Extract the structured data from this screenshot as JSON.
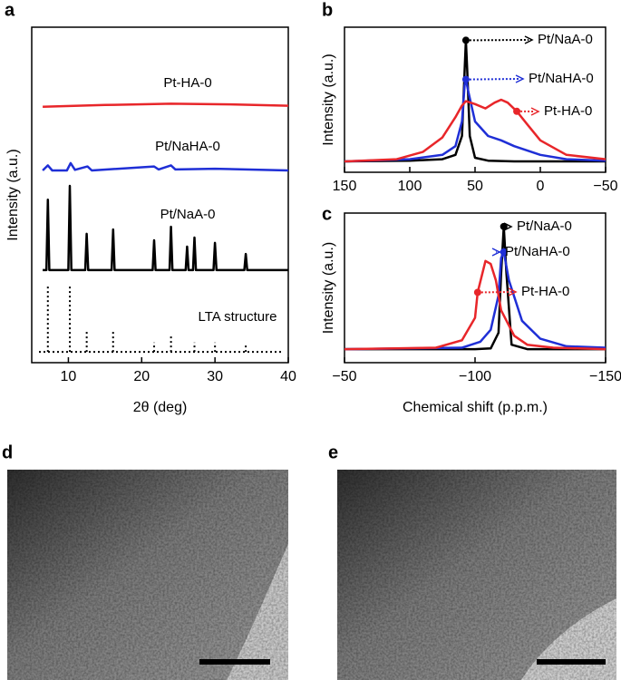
{
  "chart_data": [
    {
      "type": "line",
      "panel_label": "a",
      "x_label": "2θ (deg)",
      "y_label": "Intensity (a.u.)",
      "xlim": [
        5,
        40
      ],
      "xticks": [
        10,
        20,
        30,
        40
      ],
      "ylim": [
        0,
        100
      ],
      "grid": false,
      "series": [
        {
          "name": "Pt-HA-0",
          "color": "#e8262a",
          "style": "line",
          "x": [
            6.5,
            15,
            24,
            32,
            40
          ],
          "values": [
            76.3,
            76.8,
            77.2,
            77.0,
            76.6
          ]
        },
        {
          "name": "Pt/NaHA-0",
          "color": "#1f2fd6",
          "style": "line",
          "x": [
            6.5,
            7.2,
            7.8,
            9.8,
            10.3,
            10.9,
            12.6,
            13.2,
            21.7,
            22.3,
            24,
            24.6,
            30,
            40
          ],
          "values": [
            57.3,
            58.8,
            57.3,
            57.3,
            59.5,
            57.5,
            58.5,
            57.3,
            58.5,
            57.6,
            58.8,
            57.6,
            57.8,
            57.3
          ]
        },
        {
          "name": "Pt/NaA-0",
          "color": "#000000",
          "style": "line",
          "x": [
            6.5,
            7.0,
            7.2,
            7.4,
            10.0,
            10.2,
            10.4,
            12.3,
            12.5,
            12.7,
            15.9,
            16.1,
            16.3,
            21.5,
            21.7,
            21.9,
            23.8,
            24.0,
            24.2,
            26.0,
            26.2,
            26.4,
            27.0,
            27.2,
            27.4,
            29.8,
            30.0,
            30.2,
            34.0,
            34.2,
            34.4,
            40
          ],
          "values": [
            27.6,
            27.6,
            48.6,
            27.6,
            27.6,
            52.7,
            27.6,
            27.6,
            38.4,
            27.6,
            27.6,
            39.7,
            27.6,
            27.6,
            36.5,
            27.6,
            27.6,
            40.5,
            27.6,
            27.6,
            34.6,
            27.6,
            27.6,
            37.3,
            27.6,
            27.6,
            35.7,
            27.6,
            27.6,
            32.4,
            27.6,
            27.6
          ]
        },
        {
          "name": "LTA structure",
          "color": "#000000",
          "label_color": "#8c8c8c",
          "style": "stem",
          "baseline": 3.2,
          "x": [
            7.2,
            10.2,
            12.5,
            16.1,
            21.7,
            24.0,
            27.2,
            30.0,
            34.2
          ],
          "values": [
            23,
            23,
            9.5,
            9.5,
            6,
            8,
            6,
            6,
            5.4
          ]
        }
      ]
    },
    {
      "type": "line",
      "panel_label": "b",
      "y_label": "Intensity (a.u.)",
      "xlim": [
        150,
        -50
      ],
      "xticks": [
        150,
        100,
        50,
        0,
        {
          "value": -50,
          "label": "−50"
        }
      ],
      "ylim": [
        0,
        100
      ],
      "grid": false,
      "series": [
        {
          "name": "Pt/NaA-0",
          "color": "#000000",
          "style": "line",
          "marker_x": 57,
          "x": [
            150,
            100,
            75,
            65,
            60,
            58,
            57,
            56,
            54,
            50,
            40,
            20,
            0,
            -50
          ],
          "values": [
            7.5,
            8,
            9,
            12,
            25,
            70,
            91,
            70,
            25,
            10,
            8,
            7.5,
            7.5,
            7.5
          ]
        },
        {
          "name": "Pt/NaHA-0",
          "color": "#1f2fd6",
          "style": "line",
          "marker_x": 57,
          "x": [
            150,
            100,
            75,
            65,
            60,
            58,
            57,
            55,
            50,
            40,
            30,
            20,
            0,
            -20,
            -50
          ],
          "values": [
            7.5,
            9,
            12,
            18,
            35,
            60,
            64,
            55,
            35,
            25,
            22,
            18,
            12,
            9,
            8
          ]
        },
        {
          "name": "Pt-HA-0",
          "color": "#e8262a",
          "style": "line",
          "marker_x": 18,
          "x": [
            150,
            110,
            90,
            75,
            65,
            60,
            57,
            50,
            42,
            35,
            30,
            25,
            18,
            10,
            0,
            -20,
            -50
          ],
          "values": [
            7.5,
            9,
            14,
            24,
            38,
            46,
            49,
            47,
            44,
            48,
            50,
            48,
            42,
            33,
            22,
            12,
            9
          ]
        }
      ]
    },
    {
      "type": "line",
      "panel_label": "c",
      "x_label": "Chemical shift (p.p.m.)",
      "y_label": "Intensity (a.u.)",
      "xlim": [
        -50,
        -150
      ],
      "xticks": [
        {
          "value": -50,
          "label": "−50"
        },
        {
          "value": -100,
          "label": "−100"
        },
        {
          "value": -150,
          "label": "−150"
        }
      ],
      "ylim": [
        0,
        100
      ],
      "grid": false,
      "series": [
        {
          "name": "Pt/NaA-0",
          "color": "#000000",
          "style": "line",
          "marker_x": -111,
          "x": [
            -50,
            -100,
            -106,
            -109,
            -110,
            -111,
            -112,
            -114,
            -120,
            -150
          ],
          "values": [
            9,
            9,
            9.5,
            20,
            60,
            91,
            60,
            12,
            9,
            9
          ]
        },
        {
          "name": "Pt/NaHA-0",
          "color": "#1f2fd6",
          "style": "line",
          "marker_x": -111,
          "x": [
            -50,
            -95,
            -102,
            -106,
            -109,
            -110,
            -111,
            -113,
            -118,
            -125,
            -135,
            -150
          ],
          "values": [
            9,
            10,
            14,
            22,
            45,
            70,
            74,
            55,
            28,
            16,
            11,
            10
          ]
        },
        {
          "name": "Pt-HA-0",
          "color": "#e8262a",
          "style": "line",
          "marker_x": -101,
          "x": [
            -50,
            -85,
            -95,
            -100,
            -101,
            -104,
            -106,
            -108,
            -110,
            -115,
            -120,
            -130,
            -150
          ],
          "values": [
            9,
            10,
            15,
            30,
            47,
            68,
            66,
            55,
            35,
            18,
            12,
            10,
            9
          ]
        }
      ]
    }
  ],
  "images": [
    {
      "panel_label": "d"
    },
    {
      "panel_label": "e"
    }
  ]
}
